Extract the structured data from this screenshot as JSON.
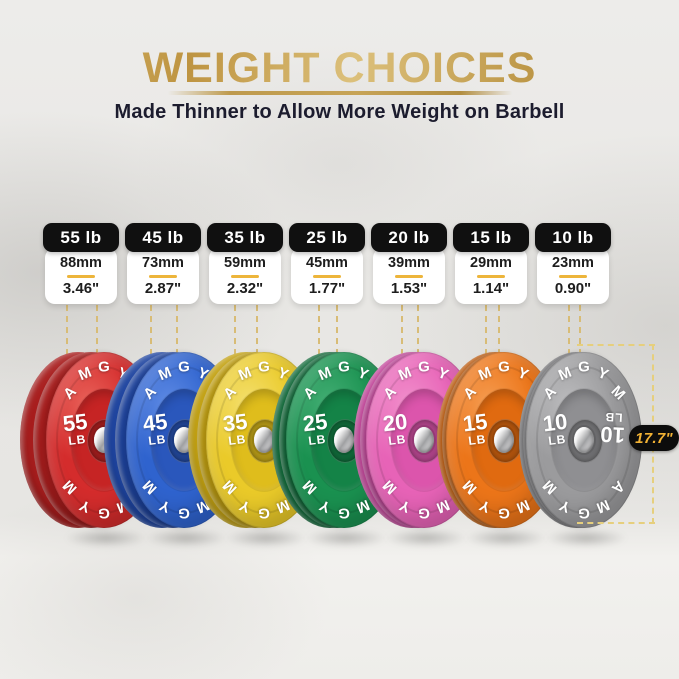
{
  "header": {
    "title": "WEIGHT CHOICES",
    "subtitle": "Made Thinner to Allow More Weight on Barbell",
    "title_color": "#C8A355",
    "subtitle_color": "#1C1C2E"
  },
  "brand": "AMGYM",
  "dimension": {
    "label": "17.7\"",
    "badge_bg": "#0C0C0C",
    "text_color": "#F2B234",
    "line_color": "#E6CF7D"
  },
  "guide_color": "#D8BC76",
  "plates": [
    {
      "spec_weight": "55 lb",
      "thickness_mm": "88mm",
      "thickness_in": "3.46\"",
      "face_weight": "55",
      "face_unit": "LB",
      "color": "#D42C2C",
      "color_light": "#E9625A",
      "color_dark": "#A81D1D",
      "color_inner": "#C62424"
    },
    {
      "spec_weight": "45 lb",
      "thickness_mm": "73mm",
      "thickness_in": "2.87\"",
      "face_weight": "45",
      "face_unit": "LB",
      "color": "#2F63CE",
      "color_light": "#5E8AE4",
      "color_dark": "#1E44A0",
      "color_inner": "#2A57BC"
    },
    {
      "spec_weight": "35 lb",
      "thickness_mm": "59mm",
      "thickness_in": "2.32\"",
      "face_weight": "35",
      "face_unit": "LB",
      "color": "#EACA29",
      "color_light": "#F4DF6E",
      "color_dark": "#C4A211",
      "color_inner": "#DFBD1C"
    },
    {
      "spec_weight": "25 lb",
      "thickness_mm": "45mm",
      "thickness_in": "1.77\"",
      "face_weight": "25",
      "face_unit": "LB",
      "color": "#1A9150",
      "color_light": "#43AE74",
      "color_dark": "#0E6837",
      "color_inner": "#148347"
    },
    {
      "spec_weight": "20 lb",
      "thickness_mm": "39mm",
      "thickness_in": "1.53\"",
      "face_weight": "20",
      "face_unit": "LB",
      "color": "#E763B7",
      "color_light": "#F18FCB",
      "color_dark": "#C4429A",
      "color_inner": "#DC55AC"
    },
    {
      "spec_weight": "15 lb",
      "thickness_mm": "29mm",
      "thickness_in": "1.14\"",
      "face_weight": "15",
      "face_unit": "LB",
      "color": "#EC7519",
      "color_light": "#F59C51",
      "color_dark": "#C05908",
      "color_inner": "#E06A10"
    },
    {
      "spec_weight": "10 lb",
      "thickness_mm": "23mm",
      "thickness_in": "0.90\"",
      "face_weight": "10",
      "face_unit": "LB",
      "color": "#9B9B9D",
      "color_light": "#BCBCBE",
      "color_dark": "#737376",
      "color_inner": "#8F8F92"
    }
  ]
}
